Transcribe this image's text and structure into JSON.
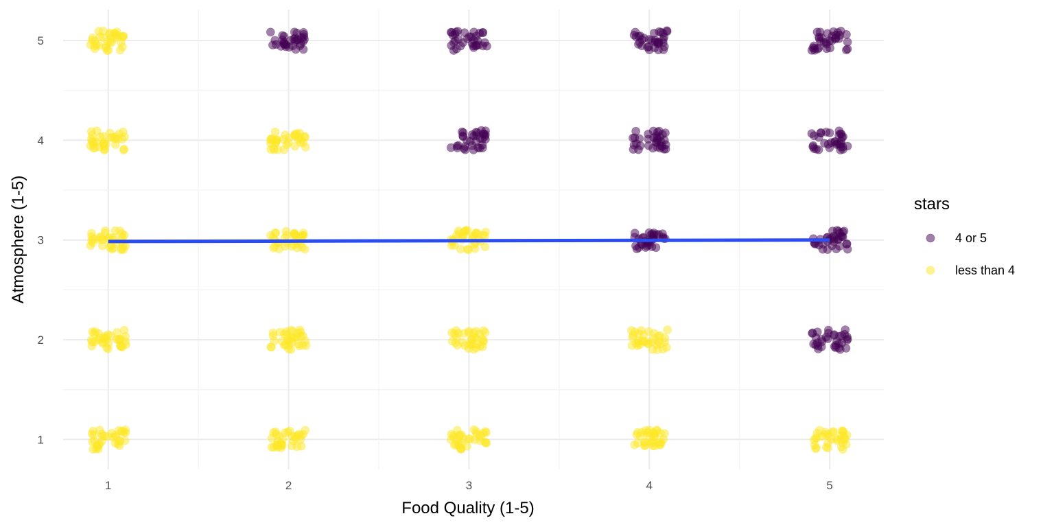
{
  "chart_data": {
    "type": "scatter",
    "title": "",
    "xlabel": "Food Quality (1-5)",
    "ylabel": "Atmosphere (1-5)",
    "x_ticks": [
      "1",
      "2",
      "3",
      "4",
      "5"
    ],
    "y_ticks": [
      "1",
      "2",
      "3",
      "4",
      "5"
    ],
    "xlim": [
      0.75,
      5.3
    ],
    "ylim": [
      0.7,
      5.31
    ],
    "grid": true,
    "jitter": 0.1,
    "legend": {
      "title": "stars",
      "position": "right",
      "entries": [
        {
          "label": "4 or 5",
          "color": "#440154"
        },
        {
          "label": "less than 4",
          "color": "#FDE725"
        }
      ]
    },
    "point_alpha": 0.5,
    "series": [
      {
        "name": "4 or 5",
        "color": "#440154",
        "cells": [
          {
            "x": 2,
            "y": 5
          },
          {
            "x": 3,
            "y": 5
          },
          {
            "x": 4,
            "y": 5
          },
          {
            "x": 5,
            "y": 5
          },
          {
            "x": 3,
            "y": 4
          },
          {
            "x": 4,
            "y": 4
          },
          {
            "x": 5,
            "y": 4
          },
          {
            "x": 4,
            "y": 3
          },
          {
            "x": 5,
            "y": 3
          },
          {
            "x": 5,
            "y": 2
          }
        ]
      },
      {
        "name": "less than 4",
        "color": "#FDE725",
        "cells": [
          {
            "x": 1,
            "y": 5
          },
          {
            "x": 1,
            "y": 4
          },
          {
            "x": 2,
            "y": 4
          },
          {
            "x": 1,
            "y": 3
          },
          {
            "x": 2,
            "y": 3
          },
          {
            "x": 3,
            "y": 3
          },
          {
            "x": 1,
            "y": 2
          },
          {
            "x": 2,
            "y": 2
          },
          {
            "x": 3,
            "y": 2
          },
          {
            "x": 4,
            "y": 2
          },
          {
            "x": 1,
            "y": 1
          },
          {
            "x": 2,
            "y": 1
          },
          {
            "x": 3,
            "y": 1
          },
          {
            "x": 4,
            "y": 1
          },
          {
            "x": 5,
            "y": 1
          }
        ]
      }
    ],
    "trend_line": {
      "color": "#2B4CF0",
      "x": [
        1,
        5
      ],
      "y": [
        2.985,
        3.0
      ]
    }
  }
}
